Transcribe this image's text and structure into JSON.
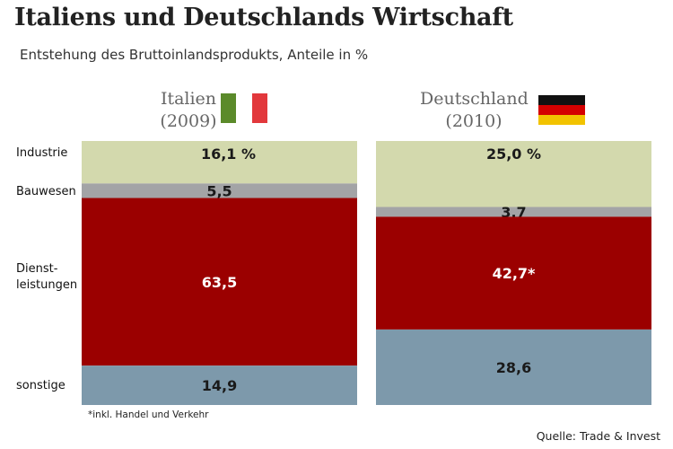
{
  "title": "Italiens und Deutschlands Wirtschaft",
  "subtitle": "Entstehung des Bruttoinlandsprodukts, Anteile in %",
  "categories": [
    "Industrie",
    "Bauwesen",
    "Dienst-\nleistungen",
    "sonstige"
  ],
  "footnote": "*inkl. Handel und Verkehr",
  "source": "Quelle: Trade & Invest",
  "colors": {
    "Industrie": "#d3d9ad",
    "Bauwesen": "#a3a4a6",
    "Dienstleistungen": "#9b0000",
    "sonstige": "#7d99ab"
  },
  "chart_data": {
    "type": "bar",
    "stacked": true,
    "categories": [
      "Italien (2009)",
      "Deutschland (2010)"
    ],
    "series": [
      {
        "name": "Industrie",
        "values": [
          16.1,
          25.0
        ],
        "labels": [
          "16,1 %",
          "25,0 %"
        ]
      },
      {
        "name": "Bauwesen",
        "values": [
          5.5,
          3.7
        ],
        "labels": [
          "5,5",
          "3,7"
        ]
      },
      {
        "name": "Dienstleistungen",
        "values": [
          63.5,
          42.7
        ],
        "labels": [
          "63,5",
          "42,7*"
        ]
      },
      {
        "name": "sonstige",
        "values": [
          14.9,
          28.6
        ],
        "labels": [
          "14,9",
          "28,6"
        ]
      }
    ],
    "ylim": [
      0,
      100
    ]
  },
  "countries": [
    {
      "name": "Italien",
      "year": "(2009)",
      "flag": "italy-flag"
    },
    {
      "name": "Deutschland",
      "year": "(2010)",
      "flag": "germany-flag"
    }
  ]
}
